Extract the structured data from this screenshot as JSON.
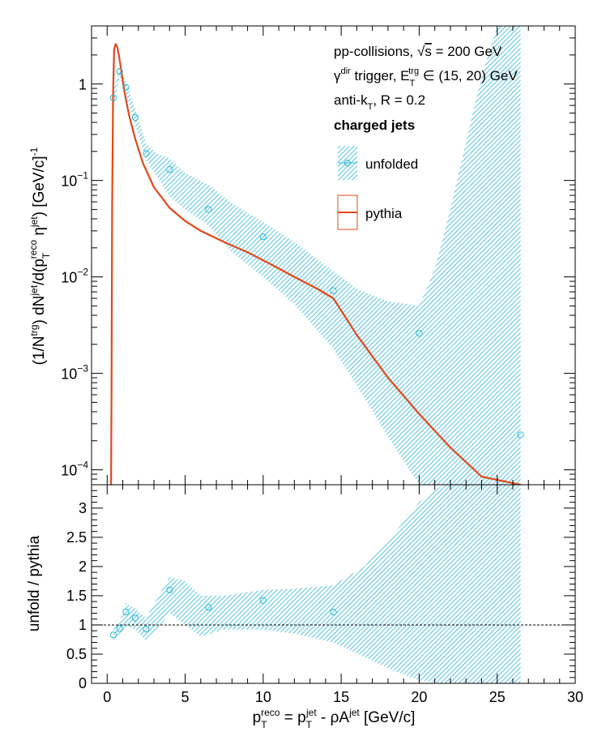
{
  "chart_data": [
    {
      "type": "scatter",
      "panel": "top",
      "ylabel_parts": {
        "a": "(1/N",
        "a_sup": "trg",
        "b": ") dN",
        "b_sup": "jet",
        "c": "/d(p",
        "c_sub": "T",
        "c_sup": "reco",
        "d": " η",
        "d_sup": "jet",
        "e": ") [GeV/c]",
        "e_sup": "-1"
      },
      "xlim": [
        -1,
        30
      ],
      "ylim": [
        7e-05,
        4
      ],
      "log_y": true,
      "y_ticks": [
        {
          "value": 1,
          "label": "1"
        },
        {
          "value": 0.1,
          "base": "10",
          "exp": "−1"
        },
        {
          "value": 0.01,
          "base": "10",
          "exp": "−2"
        },
        {
          "value": 0.001,
          "base": "10",
          "exp": "−3"
        },
        {
          "value": 0.0001,
          "base": "10",
          "exp": "−4"
        }
      ],
      "annotations": [
        {
          "parts": [
            "pp-collisions, ",
            "√",
            "s",
            " = 200 GeV"
          ]
        },
        {
          "parts": [
            "γ",
            "dir",
            " trigger, E",
            "T",
            "trg",
            " ∈ (15, 20) GeV"
          ]
        },
        {
          "parts": [
            "anti-k",
            "T",
            ", R = 0.2"
          ]
        },
        {
          "parts": [
            "charged jets"
          ]
        }
      ],
      "series": [
        {
          "name": "unfolded",
          "style": "open-circle with hatched error band",
          "x": [
            0.4,
            0.8,
            1.2,
            1.8,
            2.5,
            4.0,
            6.5,
            10.0,
            14.5,
            20.0,
            26.5
          ],
          "y": [
            0.72,
            1.35,
            0.92,
            0.45,
            0.19,
            0.13,
            0.05,
            0.026,
            0.0072,
            0.0026,
            0.00023
          ],
          "band_x": [
            0.4,
            0.8,
            1.2,
            1.8,
            2.5,
            3.2,
            4.0,
            5.0,
            6.5,
            8.0,
            10.0,
            12.0,
            14.5,
            16.0,
            18.0,
            20.0,
            21.0,
            22.0,
            23.0,
            24.0,
            25.0,
            26.5
          ],
          "band_low": [
            0.6,
            1.2,
            0.8,
            0.37,
            0.16,
            0.11,
            0.068,
            0.05,
            0.034,
            0.018,
            0.01,
            0.0052,
            0.0018,
            0.00075,
            0.00022,
            7e-05,
            7e-05,
            7e-05,
            7e-05,
            7e-05,
            7e-05,
            7e-05
          ],
          "band_high": [
            0.85,
            1.5,
            1.05,
            0.55,
            0.24,
            0.19,
            0.17,
            0.12,
            0.09,
            0.058,
            0.037,
            0.023,
            0.0115,
            0.0075,
            0.0056,
            0.005,
            0.012,
            0.05,
            0.25,
            1.2,
            4,
            4
          ]
        },
        {
          "name": "pythia",
          "style": "line",
          "x": [
            0.25,
            0.28,
            0.32,
            0.38,
            0.45,
            0.55,
            0.65,
            0.75,
            0.9,
            1.1,
            1.4,
            1.8,
            2.3,
            3.0,
            4.0,
            5.0,
            6.0,
            7.5,
            9.0,
            10.5,
            12.0,
            13.5,
            14.5,
            16.0,
            18.0,
            20.0,
            22.0,
            24.0,
            26.5
          ],
          "y": [
            7e-05,
            0.0008,
            0.05,
            0.8,
            2.3,
            2.6,
            2.4,
            2.0,
            1.4,
            0.85,
            0.48,
            0.27,
            0.15,
            0.085,
            0.052,
            0.038,
            0.03,
            0.023,
            0.018,
            0.0135,
            0.01,
            0.0075,
            0.006,
            0.0025,
            0.0009,
            0.00038,
            0.00017,
            8.5e-05,
            7e-05
          ]
        }
      ]
    },
    {
      "type": "scatter",
      "panel": "bottom",
      "ylabel": "unfold / pythia",
      "xlabel_parts": {
        "a": "p",
        "a_sub": "T",
        "a_sup": "reco",
        "b": " = p",
        "b_sub": "T",
        "b_sup": "jet",
        "c": " - ρA",
        "c_sup": "jet",
        "d": " [GeV/c]"
      },
      "xlim": [
        -1,
        30
      ],
      "ylim": [
        0,
        3.4
      ],
      "x_ticks": [
        0,
        5,
        10,
        15,
        20,
        25,
        30
      ],
      "y_ticks": [
        0,
        0.5,
        1,
        1.5,
        2,
        2.5,
        3
      ],
      "reference_line": 1,
      "series": [
        {
          "name": "unfolded",
          "x": [
            0.4,
            0.8,
            1.2,
            1.8,
            2.5,
            4.0,
            6.5,
            10.0,
            14.5
          ],
          "y": [
            0.83,
            0.94,
            1.22,
            1.12,
            0.93,
            1.6,
            1.3,
            1.42,
            1.22
          ],
          "band_x": [
            0.4,
            0.8,
            1.2,
            1.8,
            2.5,
            3.0,
            4.0,
            5.0,
            6.0,
            7.5,
            10.0,
            12.0,
            14.5,
            16.5,
            18.5,
            20.0,
            21.5,
            23.0,
            24.5,
            26.0,
            26.5
          ],
          "band_low": [
            0.75,
            0.82,
            0.98,
            0.92,
            0.72,
            0.85,
            1.2,
            1.0,
            0.8,
            0.92,
            0.92,
            0.85,
            0.7,
            0.45,
            0.2,
            0.05,
            0,
            0,
            0,
            0,
            0
          ],
          "band_high": [
            0.93,
            1.05,
            1.38,
            1.28,
            1.12,
            1.35,
            1.82,
            1.75,
            1.5,
            1.5,
            1.6,
            1.62,
            1.68,
            2.0,
            2.6,
            3.1,
            3.4,
            3.4,
            3.4,
            3.4,
            3.4
          ]
        }
      ]
    }
  ],
  "legend": [
    {
      "label": "unfolded"
    },
    {
      "label": "pythia"
    }
  ],
  "colors": {
    "unfolded": "#29b5d8",
    "pythia": "#e0491a",
    "axis": "#000000"
  }
}
